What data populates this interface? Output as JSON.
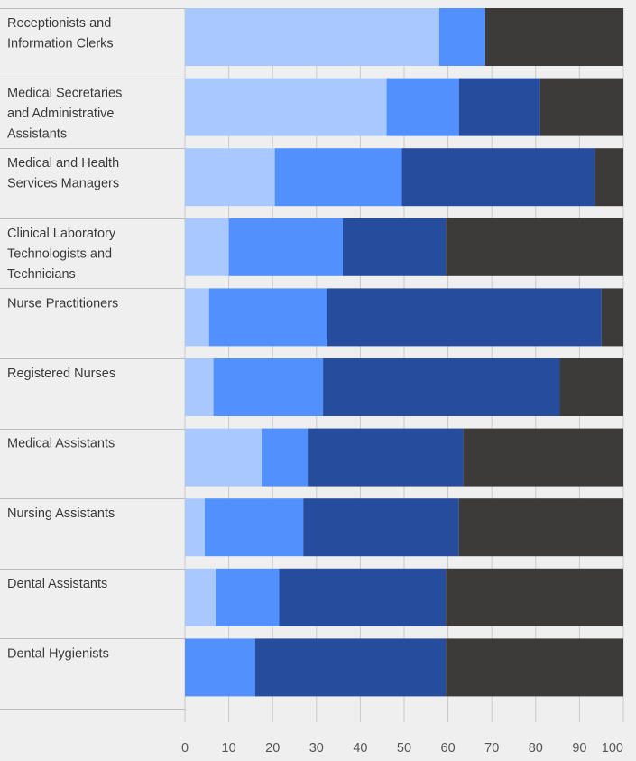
{
  "chart_data": {
    "type": "bar",
    "orientation": "horizontal",
    "stacked": true,
    "title": "",
    "xlabel": "",
    "ylabel": "",
    "xlim": [
      0,
      100
    ],
    "x_ticks": [
      "0",
      "10",
      "20",
      "30",
      "40",
      "50",
      "60",
      "70",
      "80",
      "90",
      "100"
    ],
    "grid": true,
    "legend": "none",
    "categories": [
      [
        "Receptionists and",
        "Information Clerks"
      ],
      [
        "Medical Secretaries",
        "and Administrative",
        "Assistants"
      ],
      [
        "Medical and Health",
        "Services Managers"
      ],
      [
        "Clinical Laboratory",
        "Technologists and",
        "Technicians"
      ],
      [
        "Nurse Practitioners"
      ],
      [
        "Registered Nurses"
      ],
      [
        "Medical Assistants"
      ],
      [
        "Nursing Assistants"
      ],
      [
        "Dental Assistants"
      ],
      [
        "Dental Hygienists"
      ]
    ],
    "series_colors": [
      "#a9c8ff",
      "#5291fd",
      "#264c9d",
      "#3c3b39"
    ],
    "series": [
      {
        "values": [
          58,
          46,
          20.5,
          10,
          5.5,
          6.5,
          17.5,
          4.5,
          7,
          0
        ]
      },
      {
        "values": [
          10.5,
          16.5,
          29,
          26,
          27,
          25,
          10.5,
          22.5,
          14.5,
          16
        ]
      },
      {
        "values": [
          0,
          18.5,
          44,
          23.5,
          62.5,
          54,
          35.5,
          35.5,
          38,
          43.5
        ]
      },
      {
        "values": [
          31.5,
          19,
          6.5,
          40.5,
          5,
          14.5,
          36.5,
          37.5,
          40.5,
          40.5
        ]
      }
    ]
  }
}
